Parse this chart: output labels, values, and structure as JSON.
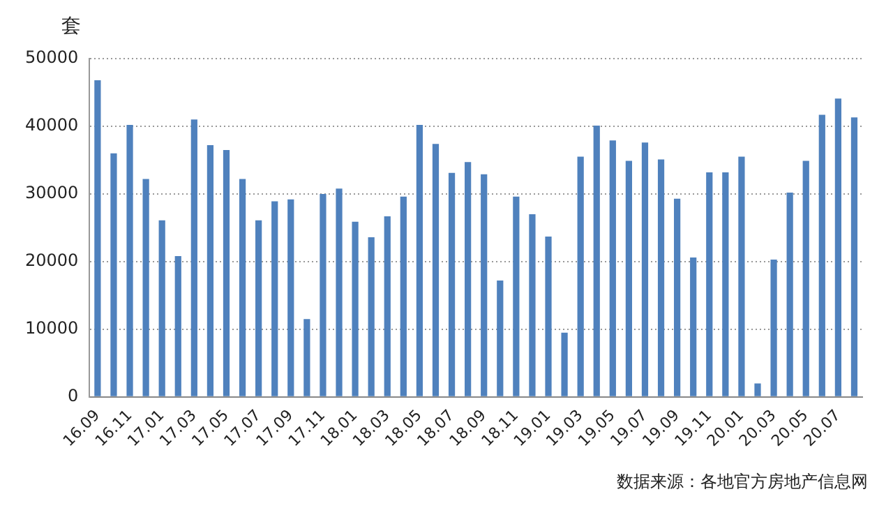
{
  "chart_data": {
    "type": "bar",
    "ylabel": "套",
    "categories": [
      "16.09",
      null,
      "16.11",
      null,
      "17.01",
      null,
      "17.03",
      null,
      "17.05",
      null,
      "17.07",
      null,
      "17.09",
      null,
      "17.11",
      null,
      "18.01",
      null,
      "18.03",
      null,
      "18.05",
      null,
      "18.07",
      null,
      "18.09",
      null,
      "18.11",
      null,
      "19.01",
      null,
      "19.03",
      null,
      "19.05",
      null,
      "19.07",
      null,
      "19.09",
      null,
      "19.11",
      null,
      "20.01",
      null,
      "20.03",
      null,
      "20.05",
      null,
      "20.07",
      null
    ],
    "values": [
      46800,
      36000,
      40200,
      32200,
      26100,
      20800,
      41000,
      37200,
      36500,
      32200,
      26100,
      28900,
      29200,
      11500,
      30000,
      30800,
      25900,
      23600,
      26700,
      29600,
      40200,
      37400,
      33100,
      34700,
      32900,
      17200,
      29600,
      27000,
      23700,
      9500,
      35500,
      40100,
      37900,
      34900,
      37600,
      35100,
      29300,
      20600,
      33200,
      33200,
      35500,
      2000,
      20300,
      30200,
      34900,
      41700,
      44100,
      41300
    ],
    "color": "#4f81bd",
    "ylim": [
      0,
      50000
    ],
    "yticks": [
      0,
      10000,
      20000,
      30000,
      40000,
      50000
    ],
    "grid": "y",
    "legend": false,
    "annotations": [
      "数据来源：各地官方房地产信息网"
    ]
  }
}
